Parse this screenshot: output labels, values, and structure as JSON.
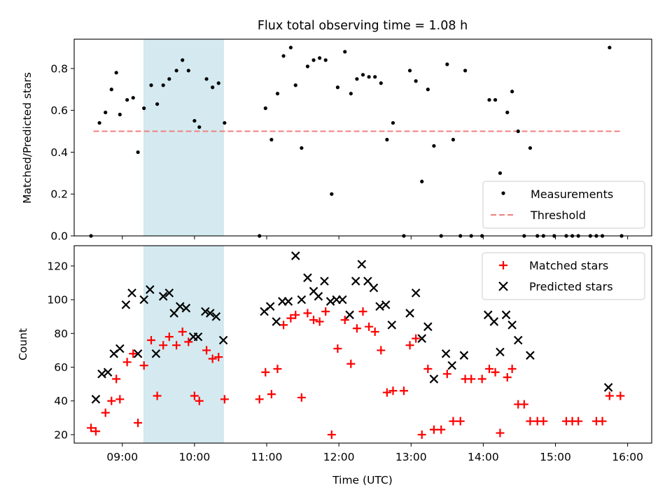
{
  "chart_data": [
    {
      "type": "scatter",
      "title": "Flux total observing time = 1.08 h",
      "xlabel": "",
      "ylabel": "Matched/Predicted stars",
      "ylim": [
        0,
        0.94
      ],
      "yticks": [
        "0.0",
        "0.2",
        "0.4",
        "0.6",
        "0.8"
      ],
      "grid": false,
      "legend_position": "lower right",
      "highlight_band": {
        "x": [
          "09:18",
          "10:24"
        ],
        "color": "#d4eaf0"
      },
      "threshold": {
        "name": "Threshold",
        "y": 0.5,
        "x": [
          "08:36",
          "15:54"
        ],
        "color": "#f08080",
        "style": "dashed"
      },
      "series": [
        {
          "name": "Measurements",
          "color": "#000000",
          "marker": "dot",
          "points": [
            [
              "08:34",
              0.0
            ],
            [
              "08:41",
              0.54
            ],
            [
              "08:46",
              0.59
            ],
            [
              "08:51",
              0.7
            ],
            [
              "08:55",
              0.78
            ],
            [
              "08:58",
              0.58
            ],
            [
              "09:04",
              0.65
            ],
            [
              "09:09",
              0.66
            ],
            [
              "09:13",
              0.4
            ],
            [
              "09:18",
              0.61
            ],
            [
              "09:24",
              0.72
            ],
            [
              "09:29",
              0.63
            ],
            [
              "09:34",
              0.72
            ],
            [
              "09:39",
              0.75
            ],
            [
              "09:45",
              0.79
            ],
            [
              "09:50",
              0.84
            ],
            [
              "09:55",
              0.79
            ],
            [
              "10:00",
              0.55
            ],
            [
              "10:04",
              0.52
            ],
            [
              "10:10",
              0.75
            ],
            [
              "10:15",
              0.71
            ],
            [
              "10:20",
              0.73
            ],
            [
              "10:25",
              0.54
            ],
            [
              "10:54",
              0.0
            ],
            [
              "10:59",
              0.61
            ],
            [
              "11:04",
              0.46
            ],
            [
              "11:09",
              0.68
            ],
            [
              "11:14",
              0.86
            ],
            [
              "11:20",
              0.9
            ],
            [
              "11:24",
              0.72
            ],
            [
              "11:29",
              0.42
            ],
            [
              "11:34",
              0.81
            ],
            [
              "11:39",
              0.84
            ],
            [
              "11:44",
              0.85
            ],
            [
              "11:49",
              0.84
            ],
            [
              "11:54",
              0.2
            ],
            [
              "11:59",
              0.71
            ],
            [
              "12:05",
              0.88
            ],
            [
              "12:10",
              0.68
            ],
            [
              "12:15",
              0.75
            ],
            [
              "12:20",
              0.77
            ],
            [
              "12:25",
              0.76
            ],
            [
              "12:30",
              0.76
            ],
            [
              "12:35",
              0.73
            ],
            [
              "12:40",
              0.46
            ],
            [
              "12:45",
              0.54
            ],
            [
              "12:54",
              0.0
            ],
            [
              "12:59",
              0.79
            ],
            [
              "13:04",
              0.74
            ],
            [
              "13:09",
              0.26
            ],
            [
              "13:14",
              0.7
            ],
            [
              "13:19",
              0.43
            ],
            [
              "13:25",
              0.0
            ],
            [
              "13:30",
              0.82
            ],
            [
              "13:35",
              0.46
            ],
            [
              "13:41",
              0.0
            ],
            [
              "13:45",
              0.79
            ],
            [
              "13:50",
              0.0
            ],
            [
              "13:59",
              0.0
            ],
            [
              "14:05",
              0.65
            ],
            [
              "14:10",
              0.65
            ],
            [
              "14:14",
              0.3
            ],
            [
              "14:20",
              0.59
            ],
            [
              "14:24",
              0.69
            ],
            [
              "14:29",
              0.5
            ],
            [
              "14:34",
              0.0
            ],
            [
              "14:39",
              0.42
            ],
            [
              "14:45",
              0.0
            ],
            [
              "14:50",
              0.0
            ],
            [
              "14:59",
              0.0
            ],
            [
              "15:09",
              0.0
            ],
            [
              "15:14",
              0.0
            ],
            [
              "15:19",
              0.0
            ],
            [
              "15:29",
              0.0
            ],
            [
              "15:34",
              0.0
            ],
            [
              "15:39",
              0.0
            ],
            [
              "15:45",
              0.9
            ],
            [
              "15:55",
              0.0
            ]
          ]
        }
      ]
    },
    {
      "type": "scatter",
      "title": "",
      "xlabel": "Time (UTC)",
      "ylabel": "Count",
      "xlim": [
        "08:20",
        "16:20"
      ],
      "ylim": [
        15,
        132
      ],
      "xticks": [
        "09:00",
        "10:00",
        "11:00",
        "12:00",
        "13:00",
        "14:00",
        "15:00",
        "16:00"
      ],
      "yticks": [
        "20",
        "40",
        "60",
        "80",
        "100",
        "120"
      ],
      "grid": false,
      "legend_position": "upper right",
      "highlight_band": {
        "x": [
          "09:18",
          "10:24"
        ],
        "color": "#d4eaf0"
      },
      "series": [
        {
          "name": "Matched stars",
          "color": "#ff0000",
          "marker": "plus",
          "points": [
            [
              "08:34",
              24
            ],
            [
              "08:38",
              22
            ],
            [
              "08:46",
              33
            ],
            [
              "08:51",
              40
            ],
            [
              "08:55",
              53
            ],
            [
              "08:58",
              41
            ],
            [
              "09:04",
              63
            ],
            [
              "09:09",
              68
            ],
            [
              "09:13",
              27
            ],
            [
              "09:18",
              61
            ],
            [
              "09:24",
              76
            ],
            [
              "09:29",
              43
            ],
            [
              "09:34",
              73
            ],
            [
              "09:39",
              78
            ],
            [
              "09:45",
              73
            ],
            [
              "09:50",
              81
            ],
            [
              "09:55",
              75
            ],
            [
              "10:00",
              43
            ],
            [
              "10:04",
              40
            ],
            [
              "10:10",
              70
            ],
            [
              "10:15",
              65
            ],
            [
              "10:20",
              66
            ],
            [
              "10:25",
              41
            ],
            [
              "10:54",
              41
            ],
            [
              "10:59",
              57
            ],
            [
              "11:04",
              44
            ],
            [
              "11:09",
              59
            ],
            [
              "11:14",
              85
            ],
            [
              "11:20",
              89
            ],
            [
              "11:24",
              91
            ],
            [
              "11:29",
              42
            ],
            [
              "11:34",
              92
            ],
            [
              "11:39",
              88
            ],
            [
              "11:44",
              87
            ],
            [
              "11:49",
              93
            ],
            [
              "11:54",
              20
            ],
            [
              "11:59",
              71
            ],
            [
              "12:05",
              88
            ],
            [
              "12:10",
              62
            ],
            [
              "12:15",
              83
            ],
            [
              "12:20",
              93
            ],
            [
              "12:25",
              84
            ],
            [
              "12:30",
              81
            ],
            [
              "12:35",
              70
            ],
            [
              "12:40",
              45
            ],
            [
              "12:45",
              46
            ],
            [
              "12:54",
              46
            ],
            [
              "12:59",
              73
            ],
            [
              "13:04",
              77
            ],
            [
              "13:09",
              20
            ],
            [
              "13:14",
              59
            ],
            [
              "13:19",
              23
            ],
            [
              "13:25",
              23
            ],
            [
              "13:30",
              56
            ],
            [
              "13:35",
              28
            ],
            [
              "13:41",
              28
            ],
            [
              "13:45",
              53
            ],
            [
              "13:50",
              53
            ],
            [
              "13:59",
              53
            ],
            [
              "14:05",
              59
            ],
            [
              "14:10",
              57
            ],
            [
              "14:14",
              21
            ],
            [
              "14:20",
              54
            ],
            [
              "14:24",
              59
            ],
            [
              "14:29",
              38
            ],
            [
              "14:34",
              38
            ],
            [
              "14:39",
              28
            ],
            [
              "14:45",
              28
            ],
            [
              "14:50",
              28
            ],
            [
              "15:09",
              28
            ],
            [
              "15:14",
              28
            ],
            [
              "15:19",
              28
            ],
            [
              "15:34",
              28
            ],
            [
              "15:39",
              28
            ],
            [
              "15:45",
              43
            ],
            [
              "15:54",
              43
            ]
          ]
        },
        {
          "name": "Predicted stars",
          "color": "#000000",
          "marker": "x",
          "points": [
            [
              "08:38",
              41
            ],
            [
              "08:43",
              56
            ],
            [
              "08:48",
              57
            ],
            [
              "08:53",
              68
            ],
            [
              "08:58",
              71
            ],
            [
              "09:03",
              97
            ],
            [
              "09:08",
              104
            ],
            [
              "09:13",
              68
            ],
            [
              "09:18",
              100
            ],
            [
              "09:23",
              106
            ],
            [
              "09:28",
              68
            ],
            [
              "09:34",
              102
            ],
            [
              "09:39",
              104
            ],
            [
              "09:43",
              92
            ],
            [
              "09:48",
              96
            ],
            [
              "09:53",
              95
            ],
            [
              "09:59",
              78
            ],
            [
              "10:03",
              78
            ],
            [
              "10:09",
              93
            ],
            [
              "10:13",
              92
            ],
            [
              "10:18",
              90
            ],
            [
              "10:24",
              76
            ],
            [
              "10:58",
              93
            ],
            [
              "11:03",
              96
            ],
            [
              "11:08",
              87
            ],
            [
              "11:13",
              99
            ],
            [
              "11:18",
              99
            ],
            [
              "11:24",
              126
            ],
            [
              "11:29",
              100
            ],
            [
              "11:34",
              113
            ],
            [
              "11:39",
              105
            ],
            [
              "11:43",
              102
            ],
            [
              "11:48",
              111
            ],
            [
              "11:53",
              99
            ],
            [
              "11:58",
              100
            ],
            [
              "12:03",
              100
            ],
            [
              "12:09",
              91
            ],
            [
              "12:14",
              111
            ],
            [
              "12:19",
              121
            ],
            [
              "12:24",
              111
            ],
            [
              "12:29",
              107
            ],
            [
              "12:34",
              96
            ],
            [
              "12:39",
              97
            ],
            [
              "12:44",
              85
            ],
            [
              "12:59",
              92
            ],
            [
              "13:04",
              104
            ],
            [
              "13:09",
              77
            ],
            [
              "13:14",
              84
            ],
            [
              "13:19",
              53
            ],
            [
              "13:29",
              68
            ],
            [
              "13:34",
              61
            ],
            [
              "13:44",
              67
            ],
            [
              "14:04",
              91
            ],
            [
              "14:09",
              87
            ],
            [
              "14:14",
              69
            ],
            [
              "14:19",
              91
            ],
            [
              "14:24",
              85
            ],
            [
              "14:29",
              76
            ],
            [
              "14:39",
              67
            ],
            [
              "15:44",
              48
            ]
          ]
        }
      ]
    }
  ]
}
